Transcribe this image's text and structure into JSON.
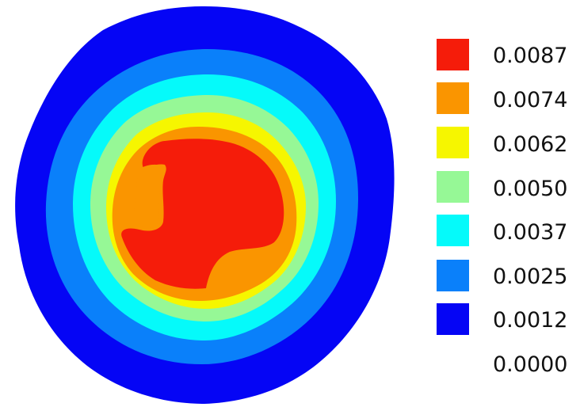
{
  "chart_data": {
    "type": "heatmap",
    "title": "",
    "subtitle": "",
    "legend": {
      "placement": "right",
      "levels": [
        {
          "label": "0.0087",
          "color": "#f51c0a"
        },
        {
          "label": "0.0074",
          "color": "#fa9500"
        },
        {
          "label": "0.0062",
          "color": "#f6f600"
        },
        {
          "label": "0.0050",
          "color": "#96f896"
        },
        {
          "label": "0.0037",
          "color": "#05fafa"
        },
        {
          "label": "0.0025",
          "color": "#0a80fa"
        },
        {
          "label": "0.0012",
          "color": "#0505f5"
        },
        {
          "label": "0.0000",
          "color": "#ffffff"
        }
      ]
    },
    "grid": false
  }
}
